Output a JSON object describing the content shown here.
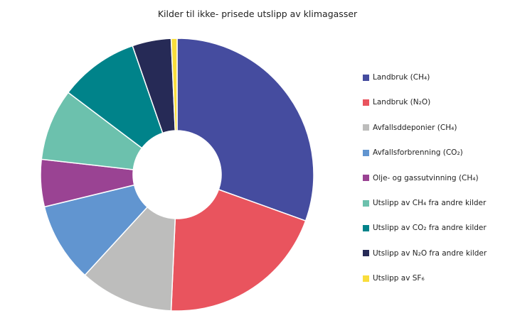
{
  "chart_data": {
    "type": "pie",
    "donut": true,
    "title": "Kilder til ikke- prisede utslipp av klimagasser",
    "legend_position": "right",
    "unit": "percent (estimated)",
    "slices": [
      {
        "label": "Landbruk (CH₄)",
        "value": 30.5,
        "color": "#454c9f"
      },
      {
        "label": "Landbruk (N₂O)",
        "value": 20.2,
        "color": "#e9545e"
      },
      {
        "label": "Avfallsddeponier (CH₄)",
        "value": 11.1,
        "color": "#bdbdbc"
      },
      {
        "label": "Avfallsforbrenning (CO₂)",
        "value": 9.4,
        "color": "#6195d0"
      },
      {
        "label": "Olje- og gassutvinning (CH₄)",
        "value": 5.6,
        "color": "#9a4393"
      },
      {
        "label": "Utslipp av CH₄ fra andre kilder",
        "value": 8.5,
        "color": "#6cc1ad"
      },
      {
        "label": "Utslipp av CO₂ fra andre kilder",
        "value": 9.4,
        "color": "#00838a"
      },
      {
        "label": "Utslipp av N₂O fra andre kilder",
        "value": 4.6,
        "color": "#262a56"
      },
      {
        "label": "Utslipp av SF₆",
        "value": 0.7,
        "color": "#f9dd3c"
      }
    ]
  }
}
